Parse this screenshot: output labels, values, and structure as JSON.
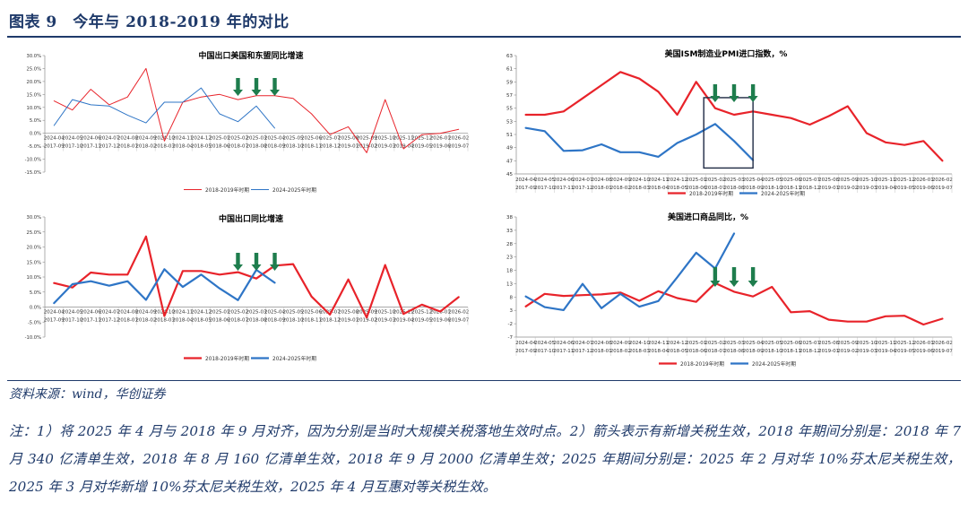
{
  "header": {
    "title": "图表 9　今年与 2018-2019 年的对比"
  },
  "footer": {
    "source": "资料来源：wind，华创证券",
    "note": "注：1）将 2025 年 4 月与 2018 年 9 月对齐，因为分别是当时大规模关税落地生效时点。2）箭头表示有新增关税生效，2018 年期间分别是：2018 年 7 月 340 亿清单生效，2018 年 8 月 160 亿清单生效，2018 年 9 月 2000 亿清单生效；2025 年期间分别是：2025 年 2 月对华 10%芬太尼关税生效，2025 年 3 月对华新增 10%芬太尼关税生效，2025 年 4 月互惠对等关税生效。"
  },
  "colors": {
    "red": "#e8232a",
    "blue": "#2e75c6",
    "arrow": "#1e7d4d",
    "box": "#1f2a44"
  },
  "chart_data": [
    {
      "id": "tl",
      "type": "line",
      "title": "中国出口美国和东盟同比增速",
      "ylim": [
        -15,
        30
      ],
      "yticks": [
        "-15.0%",
        "-10.0%",
        "-5.0%",
        "0.0%",
        "5.0%",
        "10.0%",
        "15.0%",
        "20.0%",
        "25.0%",
        "30.0%"
      ],
      "x_top": [
        "2024-04",
        "2024-05",
        "2024-06",
        "2024-07",
        "2024-08",
        "2024-09",
        "2024-10",
        "2024-11",
        "2024-12",
        "2025-01",
        "2025-02",
        "2025-03",
        "2025-04",
        "2025-05",
        "2025-06",
        "2025-07",
        "2025-08",
        "2025-09",
        "2025-10",
        "2025-11",
        "2025-12",
        "2026-01",
        "2026-02"
      ],
      "x_bottom": [
        "2017-09",
        "2017-10",
        "2017-11",
        "2017-12",
        "2018-01",
        "2018-02",
        "2018-03",
        "2018-04",
        "2018-05",
        "2018-06",
        "2018-07",
        "2018-08",
        "2018-09",
        "2018-10",
        "2018-11",
        "2018-12",
        "2019-01",
        "2019-02",
        "2019-03",
        "2019-04",
        "2019-05",
        "2019-06",
        "2019-07"
      ],
      "legend": [
        "2018-2019年时期",
        "2024-2025年时期"
      ],
      "series": [
        {
          "name": "2018-2019年时期",
          "color": "#e8232a",
          "width": 1,
          "values": [
            12.5,
            9,
            17,
            11,
            14,
            25,
            -3,
            12,
            14,
            15,
            13,
            14.5,
            14.5,
            13.5,
            7.5,
            -0.5,
            2.5,
            -7.5,
            13,
            -6,
            -0.5,
            0,
            1.5
          ]
        },
        {
          "name": "2024-2025年时期",
          "color": "#2e75c6",
          "width": 1,
          "values": [
            3,
            13,
            11,
            10.5,
            7,
            4,
            12,
            12,
            17.5,
            7.5,
            4.5,
            10.5,
            2
          ]
        }
      ],
      "arrows_at": [
        10,
        11,
        12
      ]
    },
    {
      "id": "tr",
      "type": "line",
      "title": "美国ISM制造业PMI进口指数，%",
      "ylim": [
        45,
        63
      ],
      "yticks": [
        "45",
        "47",
        "49",
        "51",
        "53",
        "55",
        "57",
        "59",
        "61",
        "63"
      ],
      "x_top": [
        "2024-04",
        "2024-05",
        "2024-06",
        "2024-07",
        "2024-08",
        "2024-09",
        "2024-10",
        "2024-11",
        "2024-12",
        "2025-01",
        "2025-02",
        "2025-03",
        "2025-04",
        "2025-05",
        "2025-06",
        "2025-07",
        "2025-08",
        "2025-09",
        "2025-10",
        "2025-11",
        "2025-12",
        "2026-01",
        "2026-02"
      ],
      "x_bottom": [
        "2017-09",
        "2017-10",
        "2017-11",
        "2017-12",
        "2018-01",
        "2018-02",
        "2018-03",
        "2018-04",
        "2018-05",
        "2018-06",
        "2018-07",
        "2018-08",
        "2018-09",
        "2018-10",
        "2018-11",
        "2018-12",
        "2019-01",
        "2019-02",
        "2019-03",
        "2019-04",
        "2019-05",
        "2019-06",
        "2019-07"
      ],
      "legend": [
        "2018-2019年时期",
        "2024-2025年时期"
      ],
      "series": [
        {
          "name": "2018-2019年时期",
          "color": "#e8232a",
          "width": 2.2,
          "values": [
            54,
            54,
            54.5,
            56.5,
            58.5,
            60.5,
            59.5,
            57.5,
            54,
            59,
            55,
            54,
            54.5,
            54,
            53.5,
            52.5,
            53.8,
            55.3,
            51.2,
            49.8,
            49.4,
            50,
            47
          ]
        },
        {
          "name": "2024-2025年时期",
          "color": "#2e75c6",
          "width": 2.2,
          "values": [
            52,
            51.5,
            48.5,
            48.6,
            49.5,
            48.3,
            48.3,
            47.6,
            49.7,
            51,
            52.6,
            50,
            47.1
          ]
        }
      ],
      "arrows_at": [
        10,
        11,
        12
      ],
      "box": {
        "x_from": 9.9,
        "x_to": 12.5,
        "y_from": 45.9,
        "y_to": 56.6
      }
    },
    {
      "id": "bl",
      "type": "line",
      "title": "中国出口同比增速",
      "ylim": [
        -10,
        30
      ],
      "yticks": [
        "-10.0%",
        "-5.0%",
        "0.0%",
        "5.0%",
        "10.0%",
        "15.0%",
        "20.0%",
        "25.0%",
        "30.0%"
      ],
      "x_top": [
        "2024-04",
        "2024-05",
        "2024-06",
        "2024-07",
        "2024-08",
        "2024-09",
        "2024-10",
        "2024-11",
        "2024-12",
        "2025-01",
        "2025-02",
        "2025-03",
        "2025-04",
        "2025-05",
        "2025-06",
        "2025-07",
        "2025-08",
        "2025-09",
        "2025-10",
        "2025-11",
        "2025-12",
        "2026-01",
        "2026-02"
      ],
      "x_bottom": [
        "2017-09",
        "2017-10",
        "2017-11",
        "2017-12",
        "2018-01",
        "2018-02",
        "2018-03",
        "2018-04",
        "2018-05",
        "2018-06",
        "2018-07",
        "2018-08",
        "2018-09",
        "2018-10",
        "2018-11",
        "2018-12",
        "2019-01",
        "2019-02",
        "2019-03",
        "2019-04",
        "2019-05",
        "2019-06",
        "2019-07"
      ],
      "legend": [
        "2018-2019年时期",
        "2024-2025年时期"
      ],
      "series": [
        {
          "name": "2018-2019年时期",
          "color": "#e8232a",
          "width": 2.2,
          "values": [
            8,
            6.5,
            11.5,
            10.8,
            10.8,
            23.5,
            -3,
            12,
            12,
            10.8,
            11.6,
            9.5,
            13.8,
            14.3,
            3.5,
            -2.5,
            9.2,
            -3.5,
            14,
            -2.3,
            0.8,
            -1.5,
            3.3
          ]
        },
        {
          "name": "2024-2025年时期",
          "color": "#2e75c6",
          "width": 2.2,
          "values": [
            1.3,
            7.6,
            8.6,
            7.1,
            8.6,
            2.4,
            12.6,
            6.7,
            10.8,
            6.2,
            2.3,
            12.4,
            8.1
          ]
        }
      ],
      "arrows_at": [
        10,
        11,
        12
      ]
    },
    {
      "id": "br",
      "type": "line",
      "title": "美国进口商品同比，%",
      "ylim": [
        -7,
        38
      ],
      "yticks": [
        "-7",
        "-2",
        "3",
        "8",
        "13",
        "18",
        "23",
        "28",
        "33",
        "38"
      ],
      "x_top": [
        "2024-04",
        "2024-05",
        "2024-06",
        "2024-07",
        "2024-08",
        "2024-09",
        "2024-10",
        "2024-11",
        "2024-12",
        "2025-01",
        "2025-02",
        "2025-03",
        "2025-04",
        "2025-05",
        "2025-06",
        "2025-07",
        "2025-08",
        "2025-09",
        "2025-10",
        "2025-11",
        "2025-12",
        "2026-01",
        "2026-02"
      ],
      "x_bottom": [
        "2017-09",
        "2017-10",
        "2017-11",
        "2017-12",
        "2018-01",
        "2018-02",
        "2018-03",
        "2018-04",
        "2018-05",
        "2018-06",
        "2018-07",
        "2018-08",
        "2018-09",
        "2018-10",
        "2018-11",
        "2018-12",
        "2019-01",
        "2019-02",
        "2019-03",
        "2019-04",
        "2019-05",
        "2019-06",
        "2019-07"
      ],
      "legend": [
        "2018-2019年时期",
        "2024-2025年时期"
      ],
      "series": [
        {
          "name": "2018-2019年时期",
          "color": "#e8232a",
          "width": 2.2,
          "values": [
            4.5,
            9.2,
            8.4,
            8.7,
            9,
            9.7,
            6.6,
            10.2,
            7.6,
            6.2,
            13.2,
            10,
            8.2,
            11.8,
            2.3,
            2.7,
            -0.5,
            -1.2,
            -1.2,
            0.8,
            1,
            -2.3,
            -0.1
          ]
        },
        {
          "name": "2024-2025年时期",
          "color": "#2e75c6",
          "width": 2.2,
          "values": [
            8.2,
            4.2,
            3.1,
            12.9,
            3.8,
            9.2,
            4.4,
            6.5,
            15.4,
            24.6,
            18.7,
            31.8
          ]
        }
      ],
      "arrows_at": [
        10,
        11,
        12
      ]
    }
  ]
}
